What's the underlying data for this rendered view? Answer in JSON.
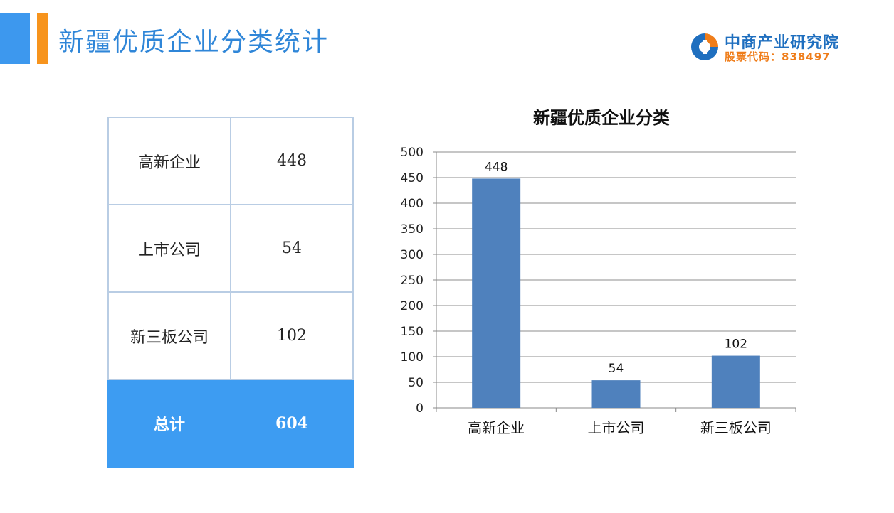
{
  "header": {
    "title": "新疆优质企业分类统计",
    "logo_name": "中商产业研究院",
    "logo_code": "股票代码：838497",
    "colors": {
      "blue": "#3d98ee",
      "orange": "#f7941d"
    }
  },
  "table": {
    "rows": [
      {
        "label": "高新企业",
        "value": "448"
      },
      {
        "label": "上市公司",
        "value": "54"
      },
      {
        "label": "新三板公司",
        "value": "102"
      }
    ],
    "total": {
      "label": "总计",
      "value": "604"
    }
  },
  "chart_data": {
    "type": "bar",
    "title": "新疆优质企业分类",
    "categories": [
      "高新企业",
      "上市公司",
      "新三板公司"
    ],
    "values": [
      448,
      54,
      102
    ],
    "data_labels": [
      "448",
      "54",
      "102"
    ],
    "ylim": [
      0,
      500
    ],
    "yticks": [
      "0",
      "50",
      "100",
      "150",
      "200",
      "250",
      "300",
      "350",
      "400",
      "450",
      "500"
    ],
    "grid": true,
    "bar_color": "#4f81bd"
  }
}
